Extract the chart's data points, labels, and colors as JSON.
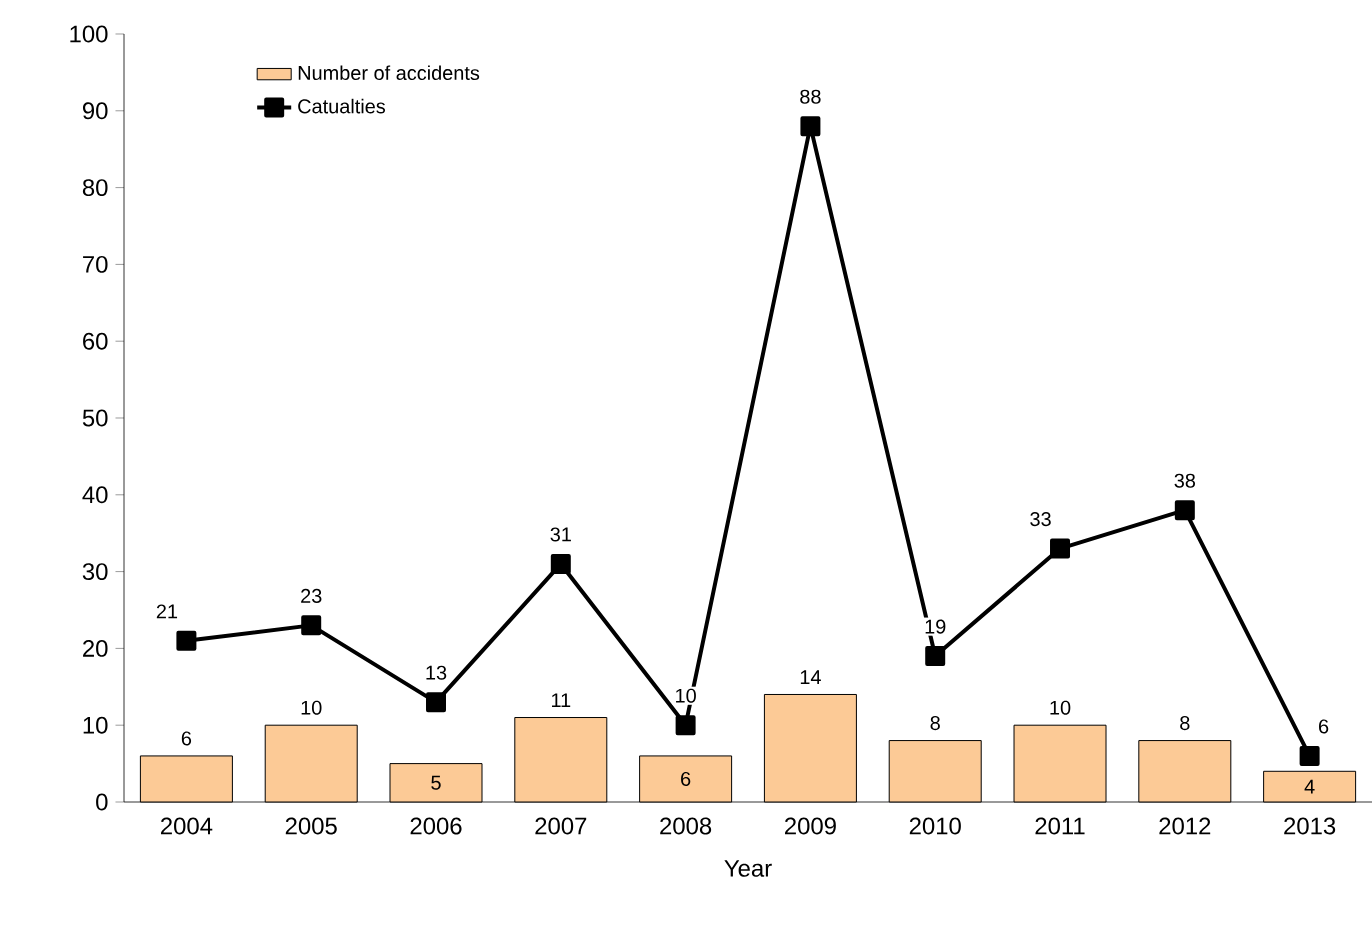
{
  "chart_data": {
    "type": "bar",
    "xlabel": "Year",
    "categories": [
      "2004",
      "2005",
      "2006",
      "2007",
      "2008",
      "2009",
      "2010",
      "2011",
      "2012",
      "2013"
    ],
    "series": [
      {
        "name": "Number of accidents",
        "color": "#fcca96",
        "values": [
          6,
          10,
          5,
          11,
          6,
          14,
          8,
          10,
          8,
          4
        ]
      },
      {
        "name": "Catualties",
        "type": "line",
        "color": "#000000",
        "marker": "square",
        "line_style": "solid",
        "values": [
          21,
          23,
          13,
          31,
          10,
          88,
          19,
          33,
          38,
          6
        ]
      }
    ],
    "ylim": [
      0,
      100
    ],
    "yticks": [
      0,
      10,
      20,
      30,
      40,
      50,
      60,
      70,
      80,
      90,
      100
    ],
    "data_labels": true,
    "legend": "top left"
  }
}
